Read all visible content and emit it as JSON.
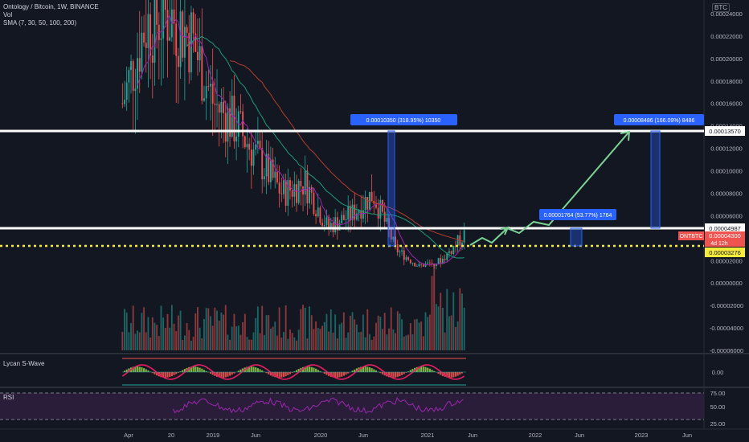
{
  "legend": {
    "line1": "Ontology / Bitcoin, 1W, BINANCE",
    "line2": "Vol",
    "line3": "SMA (7, 30, 50, 100, 200)"
  },
  "panes": {
    "wave_label": "Lycan S-Wave",
    "wave_value": "0.00",
    "rsi_label": "RSI"
  },
  "axis": {
    "currency_badge": "BTC",
    "price_ticks": [
      "0.00024000",
      "0.00022000",
      "0.00020000",
      "0.00018000",
      "0.00016000",
      "0.00014000",
      "0.00012000",
      "0.00010000",
      "0.00008000",
      "0.00006000",
      "0.00004000",
      "0.00002000",
      "0.00000000",
      "-0.00002000",
      "-0.00004000",
      "-0.00006000"
    ],
    "time_ticks": [
      "Apr",
      "20",
      "2019",
      "Jun",
      "2020",
      "Jun",
      "2021",
      "Jun",
      "2022",
      "Jun",
      "2023",
      "Jun"
    ],
    "rsi_ticks": [
      "75.00",
      "50.00",
      "25.00"
    ]
  },
  "price_tags": {
    "resistance_high": "0.00013570",
    "resistance_low": "0.00004987",
    "symbol": "ONTBTC",
    "last_price": "0.00004300",
    "countdown": "4d 12h",
    "support": "0.00003276"
  },
  "annotations": {
    "move1": "0.00010350 (318.95%) 10350",
    "move2": "0.00001764 (53.77%) 1764",
    "move3": "0.00008486 (166.09%) 8486"
  },
  "colors": {
    "background": "#131722",
    "up": "#26a69a",
    "down": "#ef5350",
    "level_line": "#ffffff",
    "support_line": "#f5eb3b",
    "projection": "#7bd394",
    "measure_box": "#2962ff",
    "sma_purple": "#9c27b0",
    "sma_green": "#1b9e77",
    "sma_red": "#b53e2c",
    "rsi_line": "#9c27b0",
    "rsi_band": "#2a1d3a"
  },
  "chart_data": {
    "type": "candlestick",
    "title": "Ontology / Bitcoin, 1W, BINANCE",
    "indicators": [
      "Vol",
      "SMA (7, 30, 50, 100, 200)",
      "Lycan S-Wave",
      "RSI"
    ],
    "y_unit": "BTC",
    "ylim": [
      -6e-05,
      0.00025
    ],
    "horizontal_levels": [
      0.0001357,
      4.987e-05,
      3.276e-05
    ],
    "last_price": 4.3e-05,
    "series": [
      {
        "name": "price_path",
        "x": [
          "2018-04",
          "2018-06",
          "2018-08",
          "2018-10",
          "2019-01",
          "2019-04",
          "2019-06",
          "2019-09",
          "2019-12",
          "2020-03",
          "2020-06",
          "2020-08",
          "2020-10",
          "2021-01",
          "2021-03",
          "2021-05"
        ],
        "values": [
          0.00016,
          0.00023,
          0.00024,
          0.00022,
          0.00016,
          0.00014,
          0.00011,
          8e-05,
          9e-05,
          5e-05,
          6e-05,
          8e-05,
          3e-05,
          1.5e-05,
          2e-05,
          4.3e-05
        ]
      }
    ],
    "projection": {
      "x": [
        "2021-05",
        "2021-08",
        "2021-11",
        "2022-03",
        "2023-01"
      ],
      "values": [
        3.3e-05,
        5e-05,
        5e-05,
        7e-05,
        0.0001357
      ]
    }
  }
}
